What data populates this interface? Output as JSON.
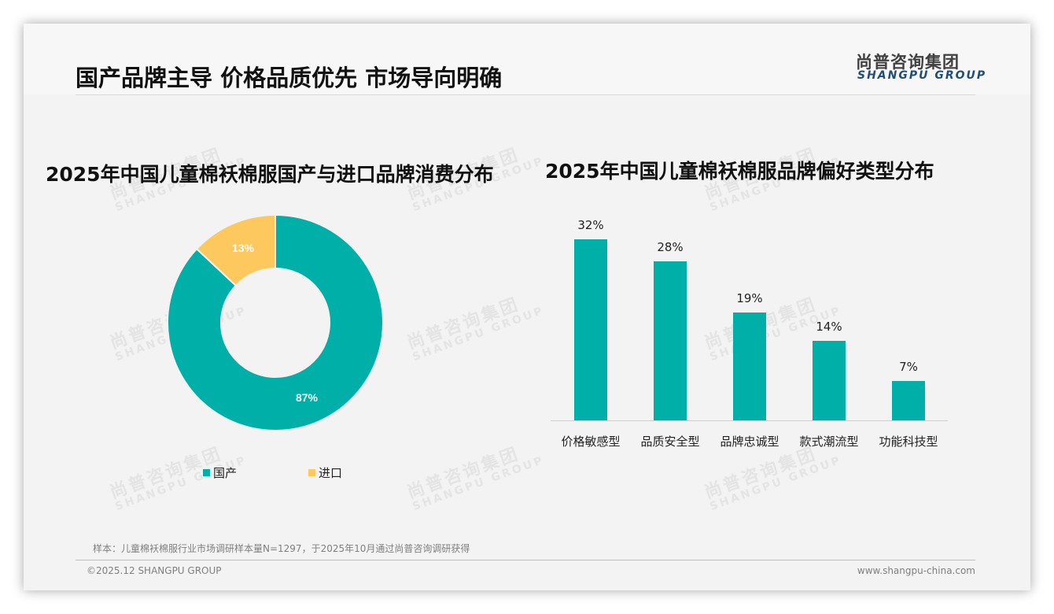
{
  "header": {
    "title": "国产品牌主导 价格品质优先 市场导向明确",
    "logo_cn": "尚普咨询集团",
    "logo_en": "SHANGPU GROUP"
  },
  "watermark": {
    "cn": "尚普咨询集团",
    "en": "SHANGPU GROUP"
  },
  "colors": {
    "teal": "#00afa8",
    "yellow": "#fdc95f",
    "logo_blue": "#1f4e79"
  },
  "chart_data": [
    {
      "type": "pie",
      "title": "2025年中国儿童棉袄棉服国产与进口品牌消费分布",
      "categories": [
        "国产",
        "进口"
      ],
      "values": [
        87,
        13
      ],
      "labels": [
        "87%",
        "13%"
      ],
      "colors": [
        "#00afa8",
        "#fdc95f"
      ],
      "donut": true,
      "legend_position": "bottom"
    },
    {
      "type": "bar",
      "title": "2025年中国儿童棉袄棉服品牌偏好类型分布",
      "categories": [
        "价格敏感型",
        "品质安全型",
        "品牌忠诚型",
        "款式潮流型",
        "功能科技型"
      ],
      "values": [
        32,
        28,
        19,
        14,
        7
      ],
      "labels": [
        "32%",
        "28%",
        "19%",
        "14%",
        "7%"
      ],
      "color": "#00afa8",
      "xlabel": "",
      "ylabel": "",
      "grid": false,
      "ylim": [
        0,
        35
      ]
    }
  ],
  "footer": {
    "note": "样本：儿童棉袄棉服行业市场调研样本量N=1297，于2025年10月通过尚普咨询调研获得",
    "copyright": "©2025.12 SHANGPU GROUP",
    "website": "www.shangpu-china.com"
  }
}
